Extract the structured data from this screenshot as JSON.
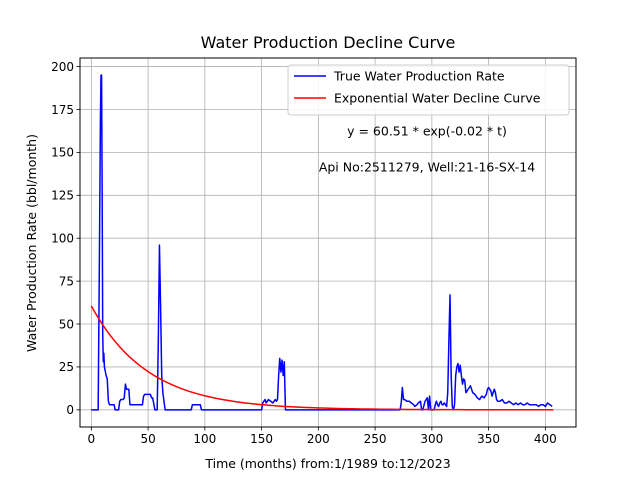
{
  "chart_data": {
    "type": "line",
    "title": "Water Production Decline Curve",
    "xlabel": "Time (months) from:1/1989 to:12/2023",
    "ylabel": "Water Production Rate (bbl/month)",
    "xlim": [
      -10,
      427
    ],
    "ylim": [
      -10,
      205
    ],
    "xticks": [
      0,
      50,
      100,
      150,
      200,
      250,
      300,
      350,
      400
    ],
    "yticks": [
      0,
      25,
      50,
      75,
      100,
      125,
      150,
      175,
      200
    ],
    "grid": true,
    "legend_position": "top-right",
    "annotations": [
      "y = 60.51 * exp(-0.02 * t)",
      "Api No:2511279, Well:21-16-SX-14"
    ],
    "colors": {
      "true_series": "#0000ff",
      "fit_series": "#ff0000",
      "grid": "#b0b0b0"
    },
    "series": [
      {
        "name": "True Water Production Rate",
        "points": [
          [
            0,
            0
          ],
          [
            6,
            0
          ],
          [
            7,
            80
          ],
          [
            8,
            170
          ],
          [
            8.5,
            195
          ],
          [
            9,
            195
          ],
          [
            9.5,
            130
          ],
          [
            10,
            45
          ],
          [
            10.5,
            28
          ],
          [
            11,
            33
          ],
          [
            11.5,
            25
          ],
          [
            13,
            20
          ],
          [
            14,
            18
          ],
          [
            15,
            5
          ],
          [
            16,
            3
          ],
          [
            18,
            3
          ],
          [
            20,
            3
          ],
          [
            21,
            0
          ],
          [
            24,
            0
          ],
          [
            25,
            5
          ],
          [
            26,
            6
          ],
          [
            28,
            6
          ],
          [
            29,
            7
          ],
          [
            30,
            15
          ],
          [
            31,
            12
          ],
          [
            32,
            12
          ],
          [
            33,
            12
          ],
          [
            34,
            3
          ],
          [
            36,
            3
          ],
          [
            40,
            3
          ],
          [
            44,
            3
          ],
          [
            45,
            3
          ],
          [
            46,
            8
          ],
          [
            47,
            9
          ],
          [
            50,
            9
          ],
          [
            52,
            9
          ],
          [
            53,
            7
          ],
          [
            54,
            7
          ],
          [
            56,
            0
          ],
          [
            58,
            0
          ],
          [
            59,
            40
          ],
          [
            60,
            96
          ],
          [
            61,
            60
          ],
          [
            62,
            20
          ],
          [
            63,
            10
          ],
          [
            64,
            5
          ],
          [
            65,
            0
          ],
          [
            67,
            0
          ],
          [
            75,
            0
          ],
          [
            85,
            0
          ],
          [
            88,
            0
          ],
          [
            89,
            3
          ],
          [
            92,
            3
          ],
          [
            95,
            3
          ],
          [
            96,
            3
          ],
          [
            97,
            0
          ],
          [
            110,
            0
          ],
          [
            130,
            0
          ],
          [
            150,
            0
          ],
          [
            151,
            4
          ],
          [
            152,
            5
          ],
          [
            153,
            6
          ],
          [
            154,
            4
          ],
          [
            156,
            6
          ],
          [
            158,
            5
          ],
          [
            160,
            4
          ],
          [
            162,
            6
          ],
          [
            163,
            5
          ],
          [
            164,
            6
          ],
          [
            165,
            20
          ],
          [
            166,
            30
          ],
          [
            167,
            22
          ],
          [
            168,
            29
          ],
          [
            169,
            20
          ],
          [
            170,
            28
          ],
          [
            171,
            0
          ],
          [
            180,
            0
          ],
          [
            200,
            0
          ],
          [
            220,
            0
          ],
          [
            240,
            0
          ],
          [
            260,
            0
          ],
          [
            272,
            0
          ],
          [
            273,
            4
          ],
          [
            274,
            13
          ],
          [
            275,
            6
          ],
          [
            276,
            6
          ],
          [
            278,
            5
          ],
          [
            280,
            5
          ],
          [
            282,
            4
          ],
          [
            284,
            3
          ],
          [
            285,
            2
          ],
          [
            287,
            3
          ],
          [
            288,
            4
          ],
          [
            290,
            5
          ],
          [
            291,
            0
          ],
          [
            292,
            0
          ],
          [
            294,
            5
          ],
          [
            295,
            6
          ],
          [
            296,
            7
          ],
          [
            297,
            0
          ],
          [
            298,
            8
          ],
          [
            299,
            0
          ],
          [
            300,
            0
          ],
          [
            301,
            0
          ],
          [
            302,
            0
          ],
          [
            303,
            3
          ],
          [
            304,
            5
          ],
          [
            305,
            3
          ],
          [
            306,
            2
          ],
          [
            307,
            4
          ],
          [
            308,
            5
          ],
          [
            309,
            3
          ],
          [
            310,
            3
          ],
          [
            311,
            4
          ],
          [
            312,
            3
          ],
          [
            313,
            2
          ],
          [
            314,
            10
          ],
          [
            315,
            40
          ],
          [
            316,
            67
          ],
          [
            317,
            20
          ],
          [
            318,
            2
          ],
          [
            319,
            0
          ],
          [
            320,
            3
          ],
          [
            321,
            20
          ],
          [
            322,
            25
          ],
          [
            323,
            27
          ],
          [
            324,
            22
          ],
          [
            325,
            26
          ],
          [
            326,
            20
          ],
          [
            327,
            15
          ],
          [
            328,
            18
          ],
          [
            329,
            17
          ],
          [
            330,
            10
          ],
          [
            332,
            12
          ],
          [
            334,
            14
          ],
          [
            336,
            10
          ],
          [
            338,
            9
          ],
          [
            340,
            7
          ],
          [
            342,
            6
          ],
          [
            344,
            8
          ],
          [
            346,
            7
          ],
          [
            348,
            9
          ],
          [
            349,
            12
          ],
          [
            350,
            13
          ],
          [
            352,
            11
          ],
          [
            353,
            8
          ],
          [
            355,
            12
          ],
          [
            356,
            10
          ],
          [
            357,
            6
          ],
          [
            358,
            5
          ],
          [
            360,
            5
          ],
          [
            362,
            6
          ],
          [
            364,
            4
          ],
          [
            366,
            4
          ],
          [
            368,
            5
          ],
          [
            370,
            4
          ],
          [
            372,
            3
          ],
          [
            374,
            4
          ],
          [
            376,
            3
          ],
          [
            378,
            4
          ],
          [
            380,
            3
          ],
          [
            382,
            3
          ],
          [
            384,
            4
          ],
          [
            386,
            3
          ],
          [
            388,
            3
          ],
          [
            390,
            3
          ],
          [
            392,
            3
          ],
          [
            394,
            2
          ],
          [
            396,
            3
          ],
          [
            398,
            3
          ],
          [
            400,
            2
          ],
          [
            402,
            4
          ],
          [
            404,
            3
          ],
          [
            406,
            2
          ]
        ]
      },
      {
        "name": "Exponential Water Decline Curve",
        "fit": {
          "a": 60.51,
          "b": 0.02,
          "x_start": 0,
          "x_end": 407
        }
      }
    ]
  }
}
